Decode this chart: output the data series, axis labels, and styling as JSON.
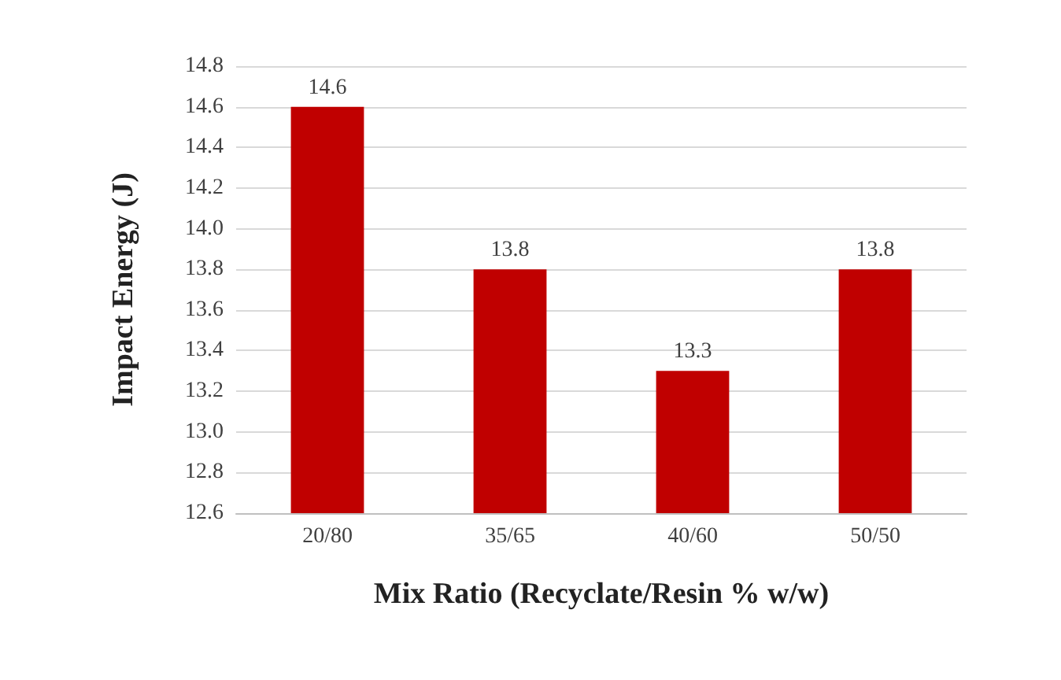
{
  "chart_data": {
    "type": "bar",
    "xlabel": "Mix Ratio (Recyclate/Resin % w/w)",
    "ylabel": "Impact Energy (J)",
    "categories": [
      "20/80",
      "35/65",
      "40/60",
      "50/50"
    ],
    "values": [
      14.6,
      13.8,
      13.3,
      13.8
    ],
    "color": "#c00000",
    "ylim": [
      12.6,
      14.8
    ],
    "yticks": [
      12.6,
      12.8,
      {
        "value": 13,
        "label": "13.0"
      },
      13.2,
      13.4,
      13.6,
      13.8,
      {
        "value": 14,
        "label": "14.0"
      },
      14.2,
      14.4,
      14.6,
      14.8
    ],
    "grid": "y",
    "data_labels": true
  }
}
